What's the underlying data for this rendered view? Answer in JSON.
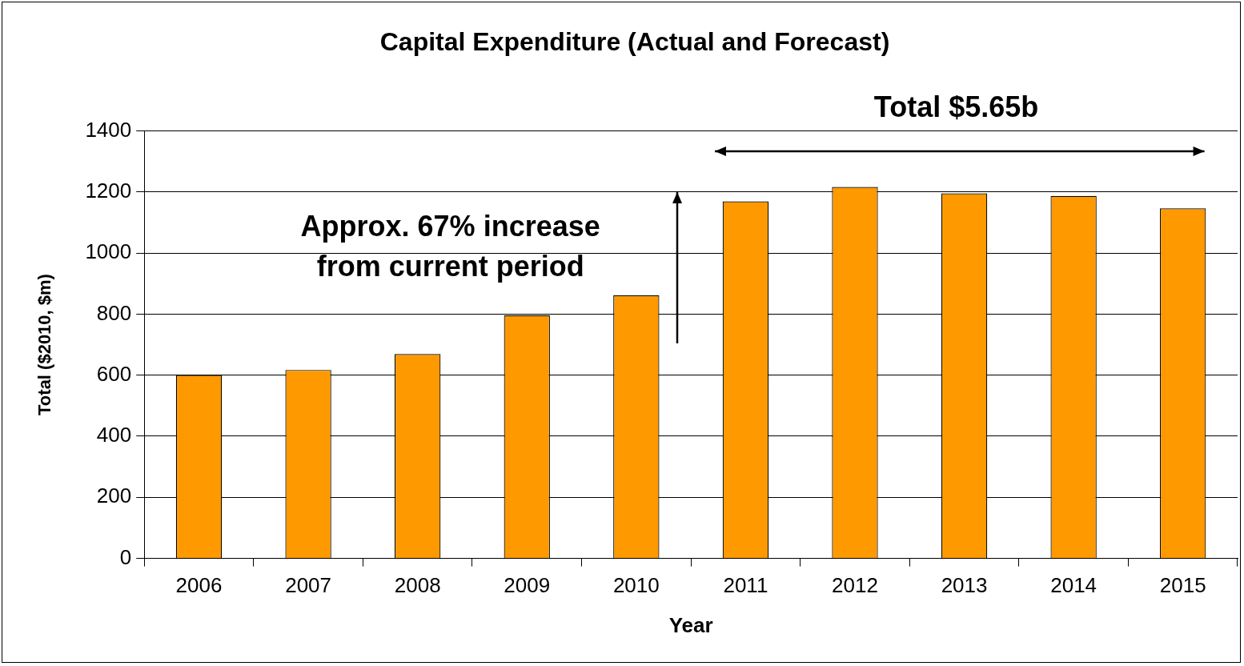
{
  "chart_data": {
    "type": "bar",
    "title": "Capital Expenditure (Actual and Forecast)",
    "xlabel": "Year",
    "ylabel": "Total ($2010, $m)",
    "categories": [
      "2006",
      "2007",
      "2008",
      "2009",
      "2010",
      "2011",
      "2012",
      "2013",
      "2014",
      "2015"
    ],
    "values": [
      600,
      617,
      669,
      796,
      861,
      1169,
      1216,
      1195,
      1187,
      1146
    ],
    "color": "#ff9900",
    "ylim": [
      0,
      1400
    ],
    "yticks": [
      0,
      200,
      400,
      600,
      800,
      1000,
      1200,
      1400
    ],
    "grid": "y",
    "annotations": [
      "Total $5.65b",
      "Approx. 67% increase\nfrom current period"
    ]
  }
}
